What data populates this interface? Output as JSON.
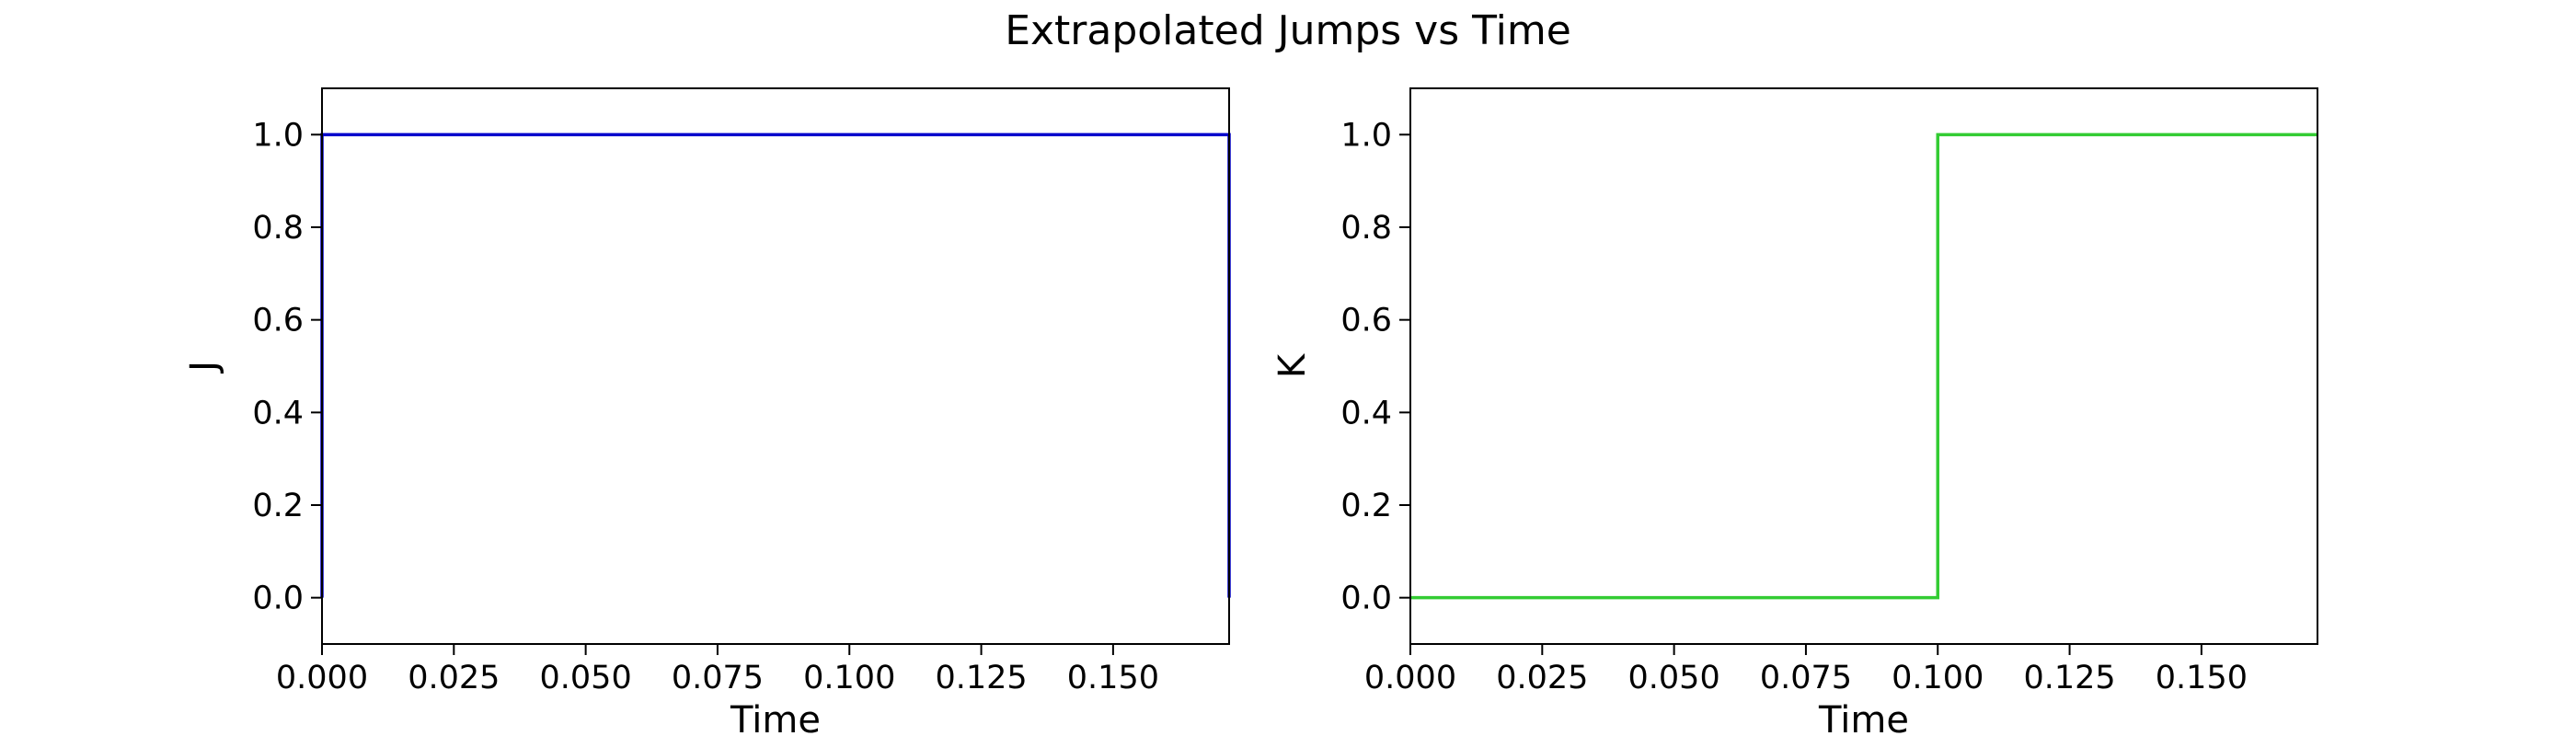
{
  "figure": {
    "suptitle": "Extrapolated Jumps vs Time"
  },
  "chart_data": [
    {
      "type": "line",
      "title": "",
      "xlabel": "Time",
      "ylabel": "J",
      "xlim": [
        0,
        0.172
      ],
      "ylim": [
        -0.1,
        1.1
      ],
      "xticks": [
        0.0,
        0.025,
        0.05,
        0.075,
        0.1,
        0.125,
        0.15
      ],
      "xtick_labels": [
        "0.000",
        "0.025",
        "0.050",
        "0.075",
        "0.100",
        "0.125",
        "0.150"
      ],
      "yticks": [
        0.0,
        0.2,
        0.4,
        0.6,
        0.8,
        1.0
      ],
      "ytick_labels": [
        "0.0",
        "0.2",
        "0.4",
        "0.6",
        "0.8",
        "1.0"
      ],
      "grid": false,
      "series": [
        {
          "color": "#0000cc",
          "x": [
            0.0,
            0.0,
            0.172,
            0.172
          ],
          "y": [
            0.0,
            1.0,
            1.0,
            0.0
          ]
        }
      ]
    },
    {
      "type": "line",
      "title": "",
      "xlabel": "Time",
      "ylabel": "K",
      "xlim": [
        0,
        0.172
      ],
      "ylim": [
        -0.1,
        1.1
      ],
      "xticks": [
        0.0,
        0.025,
        0.05,
        0.075,
        0.1,
        0.125,
        0.15
      ],
      "xtick_labels": [
        "0.000",
        "0.025",
        "0.050",
        "0.075",
        "0.100",
        "0.125",
        "0.150"
      ],
      "yticks": [
        0.0,
        0.2,
        0.4,
        0.6,
        0.8,
        1.0
      ],
      "ytick_labels": [
        "0.0",
        "0.2",
        "0.4",
        "0.6",
        "0.8",
        "1.0"
      ],
      "grid": false,
      "series": [
        {
          "color": "#33cc33",
          "x": [
            0.0,
            0.1,
            0.1,
            0.172
          ],
          "y": [
            0.0,
            0.0,
            1.0,
            1.0
          ]
        }
      ]
    }
  ]
}
